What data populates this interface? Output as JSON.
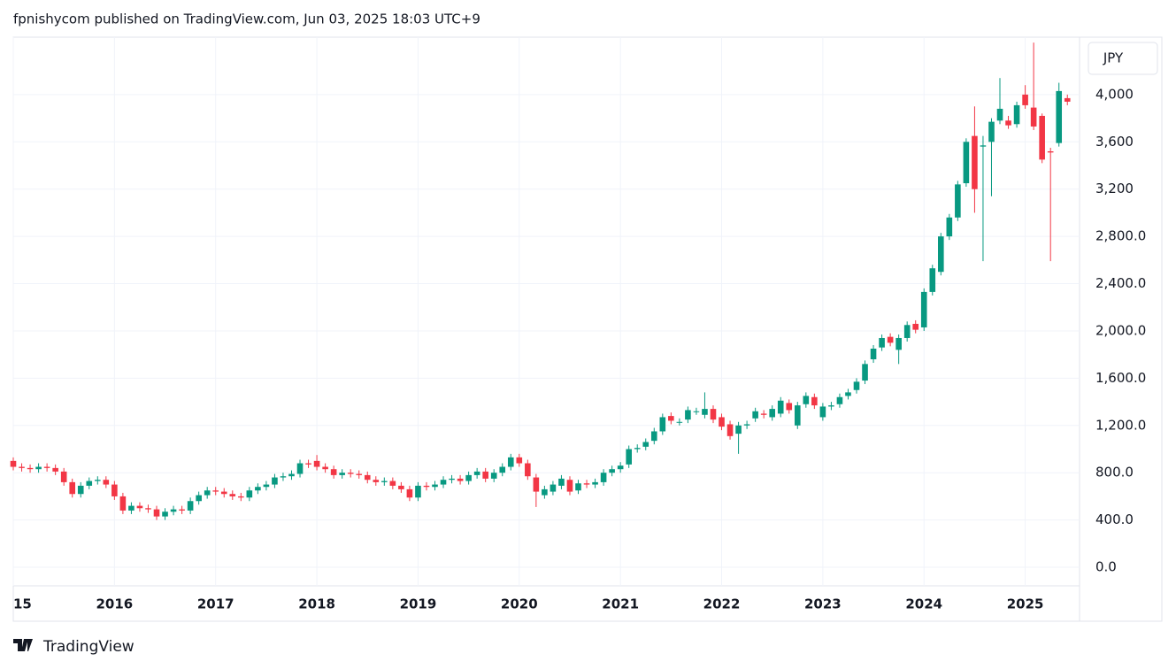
{
  "chart_data": {
    "type": "candlestick",
    "title": "fpnishycom published on TradingView.com, Jun 03, 2025 18:03 UTC+9",
    "currency_label": "JPY",
    "watermark": "TradingView",
    "up_color": "#089981",
    "down_color": "#f23645",
    "grid": true,
    "ylim": [
      -157,
      4486
    ],
    "yticks": [
      {
        "value": 0,
        "label": "0.0"
      },
      {
        "value": 400,
        "label": "400.0"
      },
      {
        "value": 800,
        "label": "800.0"
      },
      {
        "value": 1200,
        "label": "1,200.0"
      },
      {
        "value": 1600,
        "label": "1,600.0"
      },
      {
        "value": 2000,
        "label": "2,000.0"
      },
      {
        "value": 2400,
        "label": "2,400.0"
      },
      {
        "value": 2800,
        "label": "2,800.0"
      },
      {
        "value": 3200,
        "label": "3,200"
      },
      {
        "value": 3600,
        "label": "3,600"
      },
      {
        "value": 4000,
        "label": "4,000"
      }
    ],
    "xticks": [
      {
        "value": 0,
        "label": "15"
      },
      {
        "value": 12,
        "label": "2016"
      },
      {
        "value": 24,
        "label": "2017"
      },
      {
        "value": 36,
        "label": "2018"
      },
      {
        "value": 48,
        "label": "2019"
      },
      {
        "value": 60,
        "label": "2020"
      },
      {
        "value": 72,
        "label": "2021"
      },
      {
        "value": 84,
        "label": "2022"
      },
      {
        "value": 96,
        "label": "2023"
      },
      {
        "value": 108,
        "label": "2024"
      },
      {
        "value": 120,
        "label": "2025"
      }
    ],
    "open": [
      900,
      850,
      840,
      830,
      850,
      840,
      810,
      720,
      620,
      690,
      730,
      740,
      700,
      600,
      480,
      520,
      500,
      490,
      430,
      470,
      490,
      480,
      560,
      610,
      650,
      640,
      620,
      600,
      590,
      650,
      680,
      700,
      760,
      770,
      790,
      880,
      900,
      850,
      830,
      780,
      800,
      790,
      780,
      740,
      720,
      730,
      690,
      660,
      590,
      690,
      680,
      700,
      740,
      750,
      730,
      780,
      810,
      750,
      800,
      850,
      930,
      880,
      760,
      610,
      640,
      690,
      740,
      650,
      710,
      700,
      720,
      800,
      830,
      870,
      1000,
      1020,
      1070,
      1150,
      1280,
      1230,
      1250,
      1320,
      1290,
      1340,
      1270,
      1210,
      1130,
      1200,
      1260,
      1300,
      1270,
      1300,
      1390,
      1200,
      1380,
      1440,
      1270,
      1360,
      1380,
      1450,
      1500,
      1580,
      1760,
      1860,
      1950,
      1840,
      1940,
      2060,
      2030,
      2330,
      2500,
      2800,
      2960,
      3250,
      3650,
      3560,
      3600,
      3780,
      3780,
      3750,
      4000,
      3890,
      3820,
      3520,
      3590,
      3970
    ],
    "high": [
      930,
      880,
      870,
      880,
      880,
      870,
      840,
      750,
      720,
      760,
      770,
      770,
      730,
      630,
      550,
      550,
      530,
      520,
      500,
      520,
      520,
      590,
      640,
      680,
      680,
      670,
      650,
      630,
      680,
      710,
      730,
      790,
      800,
      820,
      910,
      910,
      950,
      880,
      860,
      830,
      830,
      820,
      810,
      770,
      760,
      760,
      720,
      690,
      720,
      720,
      730,
      770,
      780,
      780,
      810,
      840,
      840,
      830,
      880,
      960,
      960,
      910,
      790,
      690,
      730,
      780,
      770,
      740,
      740,
      750,
      830,
      860,
      890,
      1030,
      1040,
      1090,
      1180,
      1300,
      1310,
      1260,
      1360,
      1350,
      1480,
      1370,
      1300,
      1240,
      1230,
      1240,
      1350,
      1330,
      1370,
      1440,
      1420,
      1400,
      1480,
      1470,
      1390,
      1400,
      1470,
      1510,
      1600,
      1750,
      1880,
      1970,
      1980,
      1970,
      2080,
      2090,
      2360,
      2560,
      2830,
      2990,
      3270,
      3630,
      3900,
      3650,
      3800,
      4140,
      3820,
      3940,
      4080,
      4440,
      3840,
      3550,
      4100,
      4000
    ],
    "low": [
      820,
      810,
      800,
      800,
      810,
      780,
      690,
      590,
      590,
      660,
      700,
      670,
      570,
      450,
      450,
      470,
      460,
      400,
      400,
      440,
      450,
      450,
      530,
      580,
      610,
      590,
      570,
      560,
      560,
      620,
      650,
      670,
      730,
      740,
      760,
      840,
      820,
      800,
      750,
      750,
      760,
      750,
      710,
      690,
      690,
      660,
      630,
      560,
      560,
      650,
      650,
      670,
      710,
      700,
      700,
      750,
      720,
      720,
      770,
      820,
      850,
      740,
      510,
      580,
      610,
      660,
      610,
      620,
      670,
      670,
      690,
      770,
      800,
      840,
      970,
      990,
      1040,
      1120,
      1210,
      1200,
      1220,
      1290,
      1260,
      1220,
      1160,
      1080,
      960,
      1170,
      1230,
      1260,
      1240,
      1270,
      1300,
      1170,
      1350,
      1340,
      1240,
      1330,
      1350,
      1420,
      1470,
      1550,
      1730,
      1830,
      1870,
      1720,
      1910,
      1980,
      2000,
      2300,
      2470,
      2770,
      2930,
      3220,
      3000,
      2590,
      3140,
      3750,
      3710,
      3720,
      3880,
      3700,
      3420,
      2590,
      3560,
      3910
    ],
    "close": [
      850,
      840,
      830,
      850,
      840,
      810,
      720,
      620,
      690,
      730,
      740,
      700,
      600,
      480,
      520,
      500,
      490,
      430,
      470,
      490,
      480,
      560,
      610,
      650,
      640,
      620,
      600,
      590,
      650,
      680,
      700,
      760,
      770,
      790,
      880,
      870,
      850,
      830,
      780,
      800,
      790,
      780,
      740,
      720,
      730,
      690,
      660,
      590,
      690,
      680,
      700,
      740,
      750,
      730,
      780,
      810,
      750,
      800,
      850,
      930,
      880,
      770,
      640,
      660,
      700,
      750,
      640,
      710,
      700,
      720,
      800,
      830,
      860,
      1000,
      1010,
      1060,
      1150,
      1270,
      1240,
      1230,
      1330,
      1320,
      1340,
      1250,
      1190,
      1110,
      1200,
      1210,
      1320,
      1290,
      1340,
      1410,
      1330,
      1370,
      1450,
      1370,
      1360,
      1370,
      1440,
      1480,
      1570,
      1720,
      1850,
      1940,
      1900,
      1940,
      2050,
      2010,
      2330,
      2530,
      2800,
      2960,
      3240,
      3600,
      3200,
      3570,
      3770,
      3880,
      3740,
      3910,
      3910,
      3730,
      3450,
      3510,
      4030,
      3940
    ]
  }
}
